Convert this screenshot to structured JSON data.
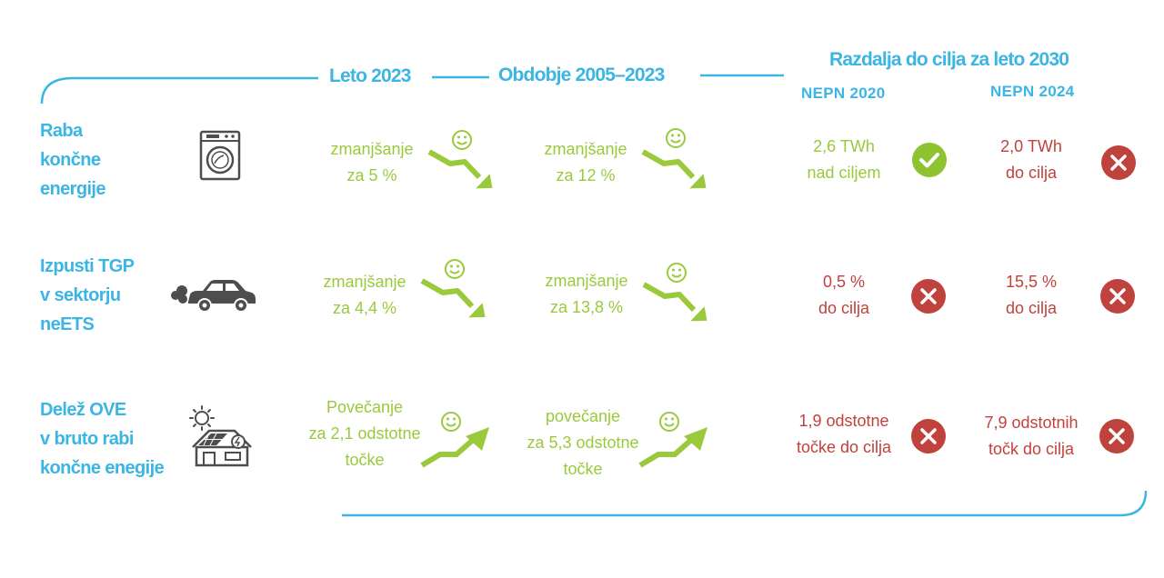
{
  "colors": {
    "blue": "#3bb5e3",
    "green": "#9bc93c",
    "red": "#c0423d",
    "icon_gray": "#4d4d4d"
  },
  "headers": {
    "leto": "Leto 2023",
    "obdobje": "Obdobje 2005–2023",
    "razdalja": "Razdalja do cilja za leto 2030",
    "nepn2020": "NEPN 2020",
    "nepn2024": "NEPN 2024"
  },
  "rows": [
    {
      "label": [
        "Raba",
        "končne",
        "energije"
      ],
      "icon": "washing-machine-icon",
      "leto": [
        "zmanjšanje",
        "za 5 %"
      ],
      "obdobje": [
        "zmanjšanje",
        "za 12 %"
      ],
      "trend": "down",
      "nepn2020": {
        "text": [
          "2,6 TWh",
          "nad ciljem"
        ],
        "status": "check"
      },
      "nepn2024": {
        "text": [
          "2,0 TWh",
          "do cilja"
        ],
        "status": "cross"
      }
    },
    {
      "label": [
        "Izpusti TGP",
        "v sektorju",
        "neETS"
      ],
      "icon": "car-exhaust-icon",
      "leto": [
        "zmanjšanje",
        "za 4,4 %"
      ],
      "obdobje": [
        "zmanjšanje",
        "za 13,8 %"
      ],
      "trend": "down",
      "nepn2020": {
        "text": [
          "0,5 %",
          "do cilja"
        ],
        "status": "cross"
      },
      "nepn2024": {
        "text": [
          "15,5 %",
          "do cilja"
        ],
        "status": "cross"
      }
    },
    {
      "label": [
        "Delež OVE",
        "v bruto rabi",
        "končne enegije"
      ],
      "icon": "solar-house-icon",
      "leto": [
        "Povečanje",
        "za 2,1 odstotne",
        "točke"
      ],
      "obdobje": [
        "povečanje",
        "za 5,3 odstotne",
        "točke"
      ],
      "trend": "up",
      "nepn2020": {
        "text": [
          "1,9 odstotne",
          "točke do cilja"
        ],
        "status": "cross"
      },
      "nepn2024": {
        "text": [
          "7,9 odstotnih",
          "točk do cilja"
        ],
        "status": "cross"
      }
    }
  ]
}
